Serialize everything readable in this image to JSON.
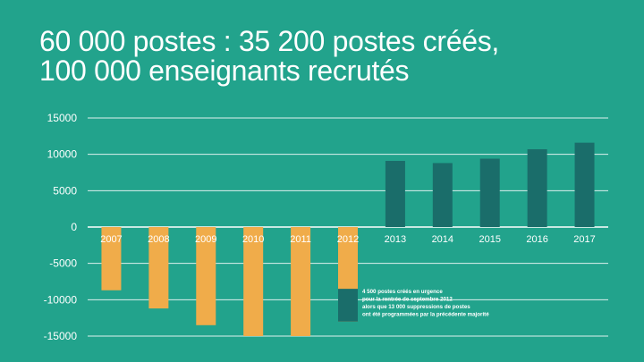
{
  "title": {
    "line1": "60 000 postes : 35 200 postes créés,",
    "line2": "100 000 enseignants recrutés"
  },
  "colors": {
    "background": "#22a38c",
    "negative_bar": "#f0ac4a",
    "positive_bar": "#1a6d6a",
    "grid": "#ffffff"
  },
  "chart_data": {
    "type": "bar",
    "categories": [
      "2007",
      "2008",
      "2009",
      "2010",
      "2011",
      "2012",
      "2013",
      "2014",
      "2015",
      "2016",
      "2017"
    ],
    "values": [
      -8700,
      -11200,
      -13500,
      -15000,
      -15000,
      -13000,
      9100,
      8800,
      9400,
      10700,
      11600
    ],
    "ylim": [
      -15000,
      15000
    ],
    "yticks": [
      15000,
      10000,
      5000,
      0,
      -5000,
      -10000,
      -15000
    ],
    "ytick_labels": [
      "15000",
      "10000",
      "5000",
      "0",
      "-5000",
      "-10000",
      "-15000"
    ],
    "grid": true,
    "overlay_2012": {
      "value": -4500,
      "color": "#1a6d6a"
    },
    "annotation": [
      "4 500 postes créés en urgence",
      "pour la rentrée de septembre 2012",
      "alors que 13 000 suppressions de postes",
      "ont été programmées par la précédente majorité"
    ]
  }
}
